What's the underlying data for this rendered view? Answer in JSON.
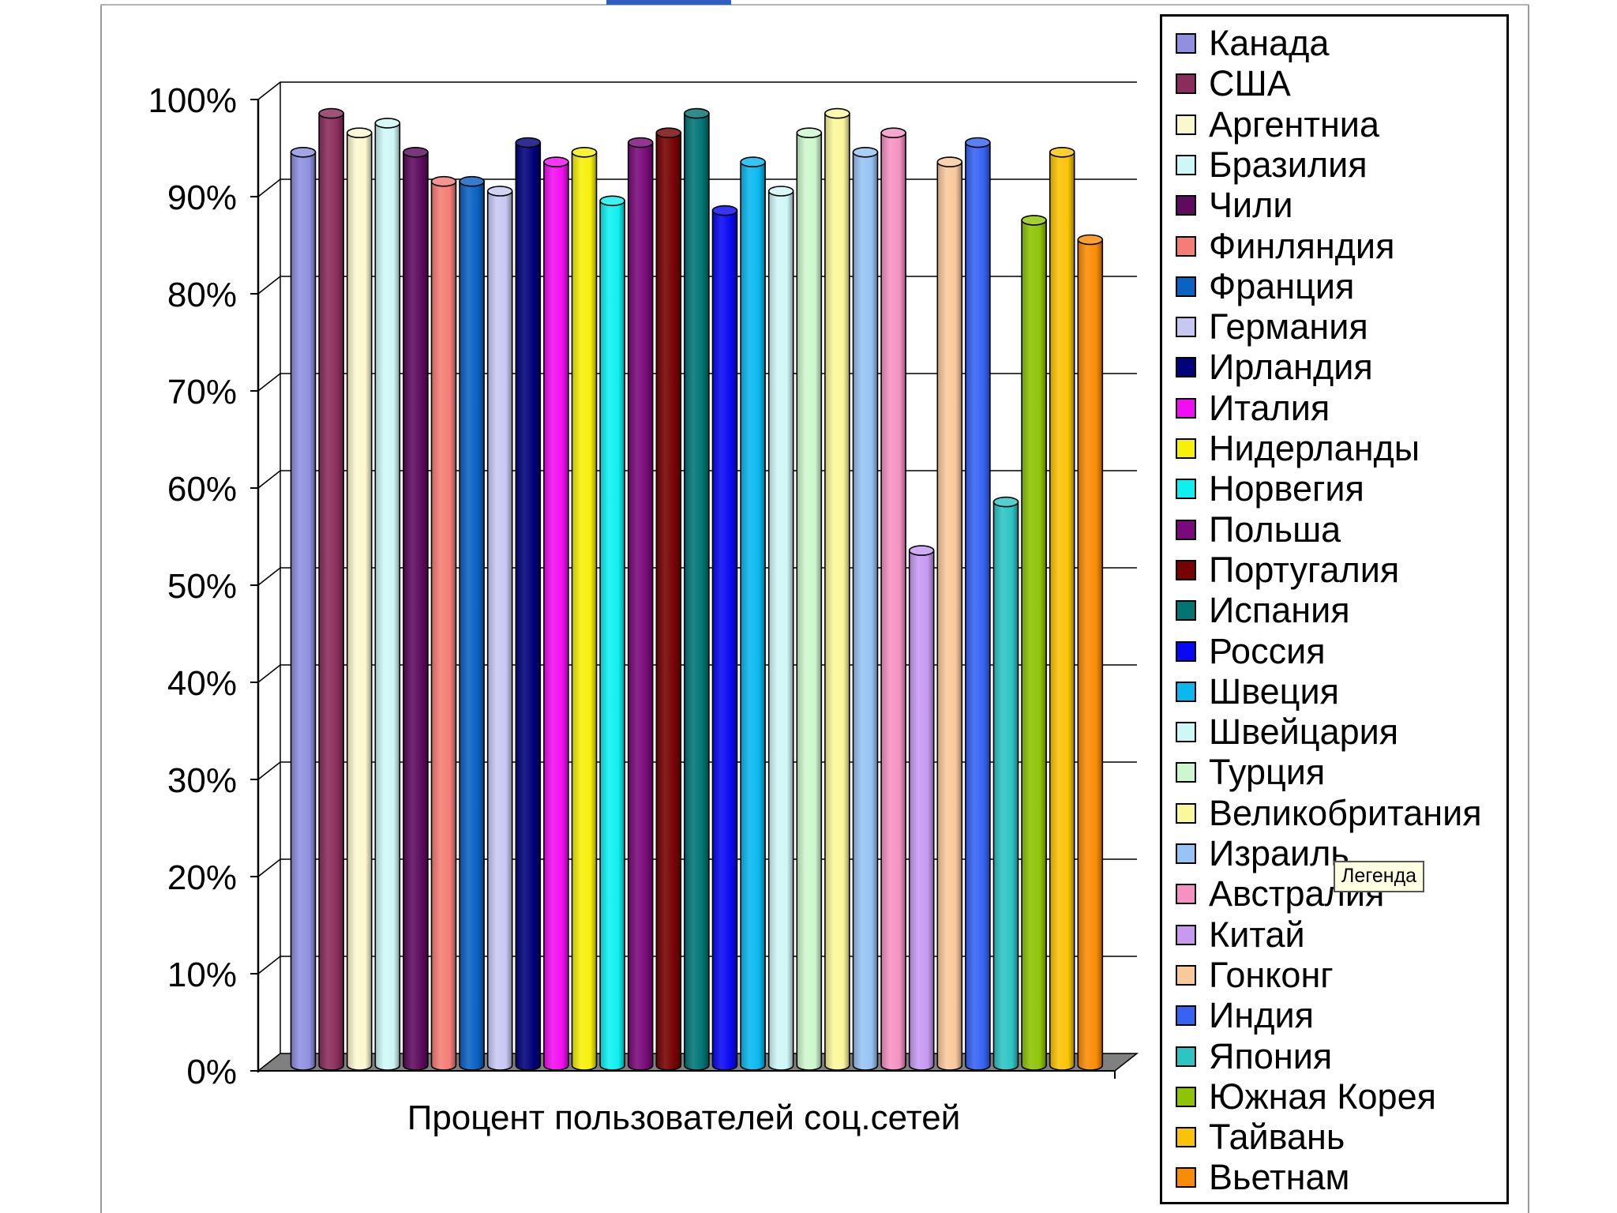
{
  "chart_data": {
    "type": "bar",
    "title": "",
    "xlabel": "Процент пользователей соц.сетей",
    "ylabel": "",
    "ylim": [
      0,
      100
    ],
    "yticks": [
      "0%",
      "10%",
      "20%",
      "30%",
      "40%",
      "50%",
      "60%",
      "70%",
      "80%",
      "90%",
      "100%"
    ],
    "grid": true,
    "legend_position": "right",
    "series": [
      {
        "name": "Канада",
        "value": 94,
        "color": "#8f90e0"
      },
      {
        "name": "США",
        "value": 98,
        "color": "#8a2d5c"
      },
      {
        "name": "Аргентниа",
        "value": 96,
        "color": "#fbf7cf"
      },
      {
        "name": "Бразилия",
        "value": 97,
        "color": "#cff7f7"
      },
      {
        "name": "Чили",
        "value": 94,
        "color": "#5e0b5e"
      },
      {
        "name": "Финляндия",
        "value": 91,
        "color": "#f47d76"
      },
      {
        "name": "Франция",
        "value": 91,
        "color": "#0a62c2"
      },
      {
        "name": "Германия",
        "value": 90,
        "color": "#c7c8f2"
      },
      {
        "name": "Ирландия",
        "value": 95,
        "color": "#02027a"
      },
      {
        "name": "Италия",
        "value": 93,
        "color": "#f20ef2"
      },
      {
        "name": "Нидерланды",
        "value": 94,
        "color": "#f6f00a"
      },
      {
        "name": "Норвегия",
        "value": 89,
        "color": "#0ef0f0"
      },
      {
        "name": "Польша",
        "value": 95,
        "color": "#7a0a7a"
      },
      {
        "name": "Португалия",
        "value": 96,
        "color": "#760202"
      },
      {
        "name": "Испания",
        "value": 98,
        "color": "#027474"
      },
      {
        "name": "Россия",
        "value": 88,
        "color": "#0a0af2"
      },
      {
        "name": "Швеция",
        "value": 93,
        "color": "#0ab8ee"
      },
      {
        "name": "Швейцария",
        "value": 90,
        "color": "#cff7f7"
      },
      {
        "name": "Турция",
        "value": 96,
        "color": "#cdf7cd"
      },
      {
        "name": "Великобритания",
        "value": 98,
        "color": "#fbf79b"
      },
      {
        "name": "Израиль",
        "value": 94,
        "color": "#97c4f5"
      },
      {
        "name": "Австралия",
        "value": 96,
        "color": "#f592c3"
      },
      {
        "name": "Китай",
        "value": 53,
        "color": "#c79af2"
      },
      {
        "name": "Гонконг",
        "value": 93,
        "color": "#f9c89b"
      },
      {
        "name": "Индия",
        "value": 95,
        "color": "#3663f2"
      },
      {
        "name": "Япония",
        "value": 58,
        "color": "#2ec4c4"
      },
      {
        "name": "Южная Корея",
        "value": 87,
        "color": "#8fc405"
      },
      {
        "name": "Тайвань",
        "value": 94,
        "color": "#f9c405"
      },
      {
        "name": "Вьетнам",
        "value": 85,
        "color": "#f98c05"
      }
    ]
  },
  "tooltip": {
    "text": "Легенда"
  }
}
